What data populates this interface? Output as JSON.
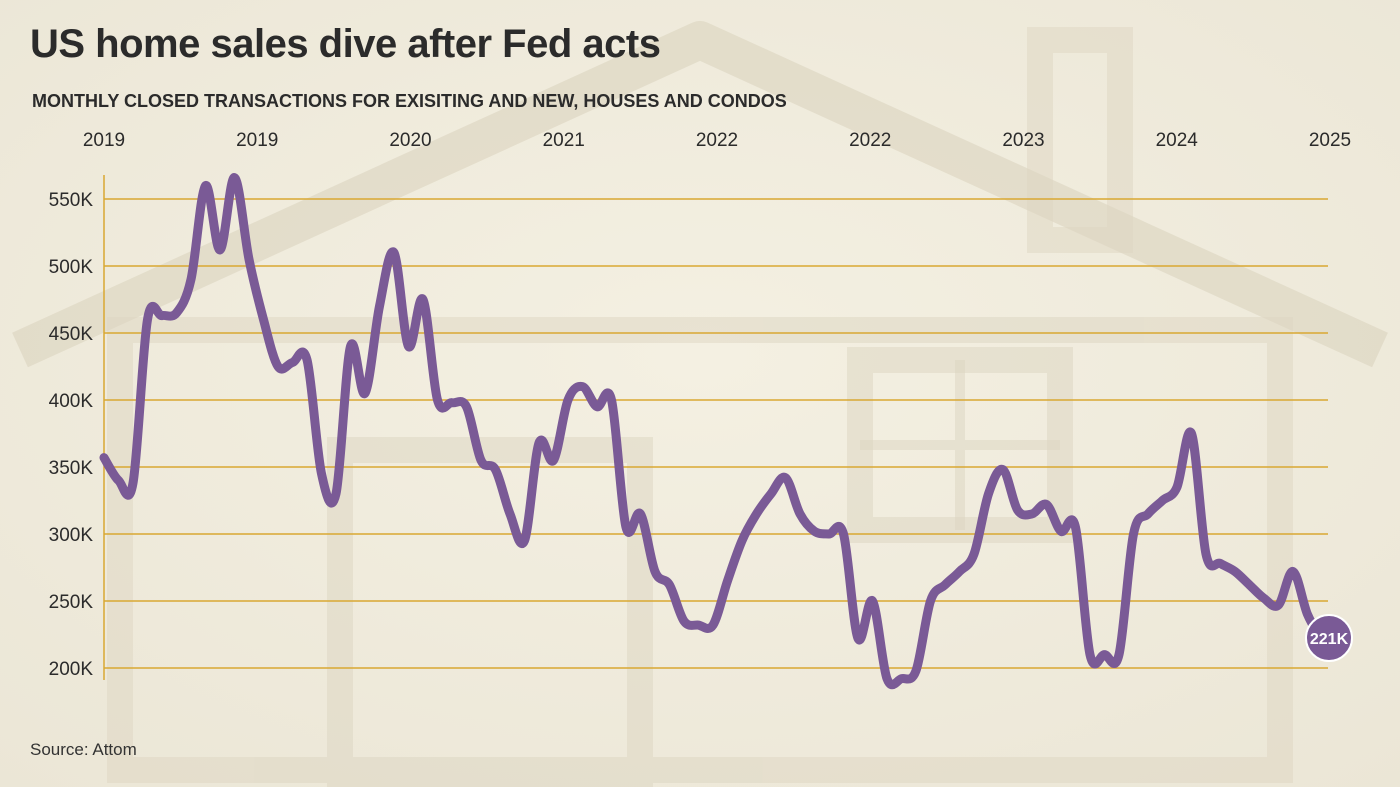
{
  "title": "US home sales dive after Fed acts",
  "subtitle": "MONTHLY CLOSED TRANSACTIONS FOR EXISITING AND NEW, HOUSES AND CONDOS",
  "source": "Source: Attom",
  "colors": {
    "line": "#7a5a96",
    "grid": "#d9a832",
    "endpoint": "#7a5a96",
    "text": "#2b2b2b"
  },
  "chart_data": {
    "type": "line",
    "title": "US home sales dive after Fed acts",
    "subtitle": "MONTHLY CLOSED TRANSACTIONS FOR EXISITING AND NEW, HOUSES AND CONDOS",
    "xlabel": "",
    "ylabel": "",
    "ylim": [
      200000,
      550000
    ],
    "y_ticks": [
      200000,
      250000,
      300000,
      350000,
      400000,
      450000,
      500000,
      550000
    ],
    "y_tick_labels": [
      "200K",
      "250K",
      "300K",
      "350K",
      "400K",
      "450K",
      "500K",
      "550K"
    ],
    "x_tick_labels": [
      "2019",
      "2019",
      "2020",
      "2021",
      "2022",
      "2022",
      "2023",
      "2024",
      "2025"
    ],
    "grid": true,
    "end_label": "221K",
    "series": [
      {
        "values": [
          357000,
          340000,
          338000,
          460000,
          463000,
          465000,
          490000,
          560000,
          512000,
          566000,
          505000,
          460000,
          425000,
          428000,
          430000,
          345000,
          330000,
          440000,
          405000,
          470000,
          510000,
          440000,
          475000,
          400000,
          398000,
          395000,
          355000,
          348000,
          315000,
          295000,
          368000,
          355000,
          400000,
          410000,
          395000,
          400000,
          305000,
          315000,
          272000,
          262000,
          235000,
          232000,
          232000,
          265000,
          295000,
          315000,
          330000,
          342000,
          315000,
          302000,
          300000,
          300000,
          222000,
          250000,
          192000,
          192000,
          198000,
          250000,
          262000,
          272000,
          285000,
          330000,
          348000,
          318000,
          315000,
          322000,
          302000,
          305000,
          210000,
          210000,
          210000,
          300000,
          315000,
          325000,
          335000,
          375000,
          285000,
          278000,
          272000,
          262000,
          252000,
          247000,
          272000,
          240000,
          221000
        ]
      }
    ]
  }
}
